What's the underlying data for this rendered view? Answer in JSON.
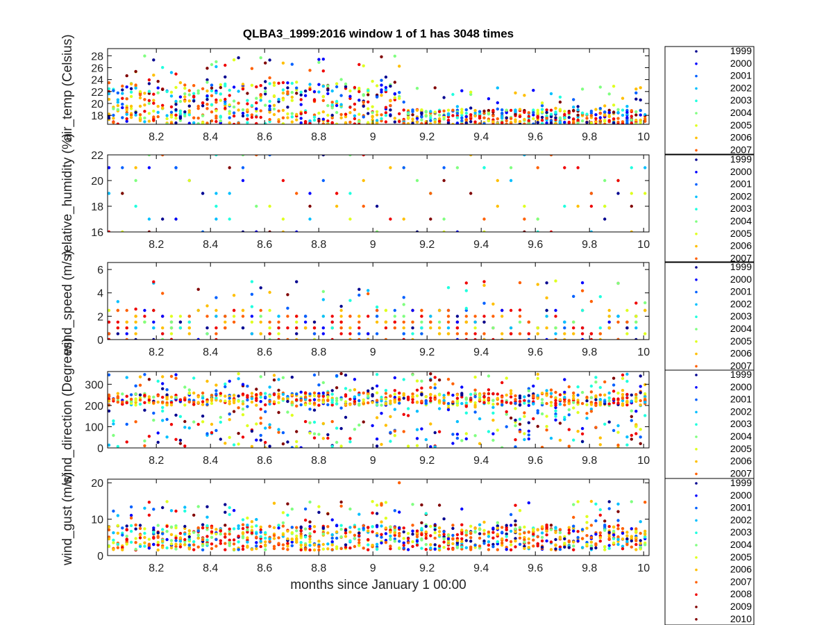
{
  "colors": {
    "year_colormap": [
      "#00008f",
      "#0000ff",
      "#0060ff",
      "#00bfff",
      "#20ffdf",
      "#80ff80",
      "#dfff20",
      "#ffbf00",
      "#ff6000",
      "#ef0000",
      "#800000"
    ],
    "axis": "#000000",
    "background": "#ffffff"
  },
  "chart_data": {
    "title": "QLBA3_1999:2016 window 1 of 1 has 3048 times",
    "xlabel": "months since January 1 00:00",
    "x_ticks": [
      "8.2",
      "8.4",
      "8.6",
      "8.8",
      "9",
      "9.2",
      "9.4",
      "9.6",
      "9.8",
      "10"
    ],
    "x_range": [
      8.02,
      10.02
    ],
    "grid": false,
    "legend_position": "right of each panel",
    "color_by": "year",
    "years": [
      "1999",
      "2000",
      "2001",
      "2002",
      "2003",
      "2004",
      "2005",
      "2006",
      "2007",
      "2008",
      "2009",
      "2010"
    ],
    "panels": [
      {
        "type": "scatter",
        "ylabel": "air_temp (Celsius)",
        "y_range": [
          16.5,
          29.2
        ],
        "y_ticks": [
          "18",
          "20",
          "22",
          "24",
          "26",
          "28"
        ],
        "legend_visible": [
          "1999",
          "2000",
          "2001",
          "2002",
          "2003",
          "2004",
          "2005",
          "2006",
          "2007"
        ],
        "series_summary": [
          {
            "x_range": [
              8.02,
              9.1
            ],
            "y_band": [
              16.5,
              23.5
            ],
            "y_peak": 28.0
          },
          {
            "x_range": [
              9.1,
              10.02
            ],
            "y_band": [
              16.5,
              19.5
            ],
            "y_peak": 24.0
          }
        ]
      },
      {
        "type": "scatter",
        "ylabel": "relative_humidity (%)",
        "y_range": [
          16,
          22
        ],
        "y_ticks": [
          "16",
          "18",
          "20",
          "22"
        ],
        "legend_visible": [
          "1999",
          "2000",
          "2001",
          "2002",
          "2003",
          "2004",
          "2005",
          "2006",
          "2007"
        ],
        "discrete_levels": [
          16,
          17,
          18,
          19,
          20,
          21,
          22
        ]
      },
      {
        "type": "scatter",
        "ylabel": "wind_speed (m/s)",
        "y_range": [
          0,
          6.6
        ],
        "y_ticks": [
          "0",
          "2",
          "4",
          "6"
        ],
        "legend_visible": [
          "1999",
          "2000",
          "2001",
          "2002",
          "2003",
          "2004",
          "2005",
          "2006",
          "2007"
        ],
        "series_summary": [
          {
            "x_range": [
              8.02,
              10.02
            ],
            "y_band": [
              0,
              2.5
            ],
            "y_peak": 6.2
          }
        ]
      },
      {
        "type": "scatter",
        "ylabel": "wind_direction (Degrees)",
        "y_range": [
          0,
          360
        ],
        "y_ticks": [
          "0",
          "100",
          "200",
          "300"
        ],
        "legend_visible": [
          "1999",
          "2000",
          "2001",
          "2002",
          "2003",
          "2004",
          "2005",
          "2006",
          "2007"
        ],
        "series_summary": [
          {
            "x_range": [
              8.02,
              10.02
            ],
            "y_band": [
              0,
              360
            ],
            "y_cluster": 225
          }
        ]
      },
      {
        "type": "scatter",
        "ylabel": "wind_gust (m/s)",
        "y_range": [
          0,
          21
        ],
        "y_ticks": [
          "0",
          "10",
          "20"
        ],
        "legend_visible": [
          "1999",
          "2000",
          "2001",
          "2002",
          "2003",
          "2004",
          "2005",
          "2006",
          "2007",
          "2008",
          "2009",
          "2010"
        ],
        "series_summary": [
          {
            "x_range": [
              8.02,
              10.02
            ],
            "y_band": [
              1,
              9
            ],
            "y_peak": 20
          }
        ]
      }
    ]
  }
}
